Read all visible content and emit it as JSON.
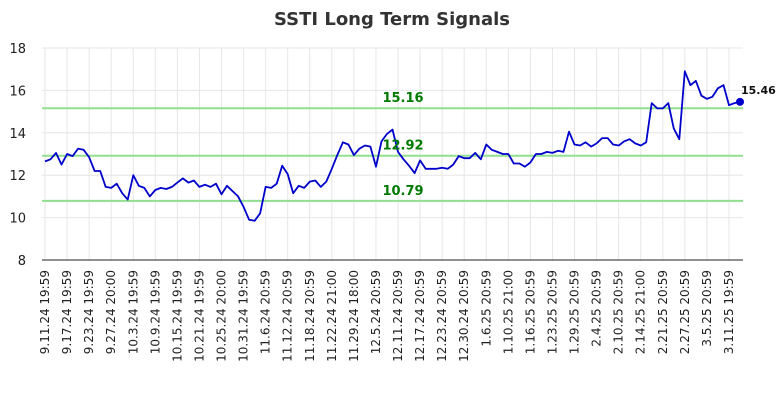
{
  "chart_data": {
    "type": "line",
    "title": "SSTI Long Term Signals",
    "ylim": [
      8,
      18
    ],
    "yticks": [
      "8",
      "10",
      "12",
      "14",
      "16",
      "18"
    ],
    "grid": true,
    "x_tick_labels": [
      "9.11.24 19:59",
      "9.17.24 19:59",
      "9.23.24 19:59",
      "9.27.24 20:00",
      "10.3.24 19:59",
      "10.9.24 19:59",
      "10.15.24 19:59",
      "10.21.24 19:59",
      "10.25.24 20:00",
      "10.31.24 19:59",
      "11.6.24 20:59",
      "11.12.24 20:59",
      "11.18.24 20:59",
      "11.22.24 21:00",
      "11.29.24 18:00",
      "12.5.24 20:59",
      "12.11.24 20:59",
      "12.17.24 20:59",
      "12.23.24 20:59",
      "12.30.24 20:59",
      "1.6.25 20:59",
      "1.10.25 21:00",
      "1.16.25 20:59",
      "1.23.25 20:59",
      "1.29.25 20:59",
      "2.4.25 20:59",
      "2.10.25 20:59",
      "2.14.25 21:00",
      "2.21.25 20:59",
      "2.27.25 20:59",
      "3.5.25 20:59",
      "3.11.25 19:59"
    ],
    "x_tick_index": [
      0,
      4,
      8,
      12,
      16,
      20,
      24,
      28,
      32,
      36,
      40,
      44,
      48,
      52,
      56,
      60,
      64,
      68,
      72,
      76,
      80,
      84,
      88,
      92,
      96,
      100,
      104,
      108,
      112,
      116,
      120,
      124
    ],
    "series": [
      {
        "color": "#0000cc",
        "values": [
          12.65,
          12.75,
          13.05,
          12.5,
          13.0,
          12.9,
          13.25,
          13.2,
          12.85,
          12.2,
          12.2,
          11.45,
          11.4,
          11.6,
          11.15,
          10.85,
          12.0,
          11.5,
          11.4,
          11.0,
          11.3,
          11.4,
          11.35,
          11.45,
          11.65,
          11.85,
          11.65,
          11.75,
          11.45,
          11.55,
          11.45,
          11.6,
          11.1,
          11.5,
          11.25,
          11.0,
          10.5,
          9.9,
          9.85,
          10.2,
          11.45,
          11.4,
          11.6,
          12.45,
          12.05,
          11.15,
          11.5,
          11.4,
          11.7,
          11.75,
          11.45,
          11.7,
          12.3,
          12.95,
          13.55,
          13.45,
          12.95,
          13.25,
          13.4,
          13.35,
          12.4,
          13.6,
          13.95,
          14.15,
          13.1,
          12.75,
          12.45,
          12.1,
          12.7,
          12.3,
          12.3,
          12.3,
          12.35,
          12.3,
          12.5,
          12.9,
          12.8,
          12.8,
          13.05,
          12.75,
          13.45,
          13.2,
          13.1,
          13.0,
          13.0,
          12.55,
          12.55,
          12.4,
          12.6,
          13.0,
          13.0,
          13.1,
          13.05,
          13.15,
          13.1,
          14.05,
          13.45,
          13.4,
          13.55,
          13.35,
          13.5,
          13.75,
          13.75,
          13.45,
          13.4,
          13.6,
          13.7,
          13.5,
          13.4,
          13.55,
          15.4,
          15.15,
          15.15,
          15.4,
          14.2,
          13.7,
          16.9,
          16.25,
          16.45,
          15.75,
          15.6,
          15.7,
          16.1,
          16.25,
          15.3,
          15.4,
          15.46
        ]
      }
    ],
    "levels": [
      {
        "value": 15.16,
        "label": "15.16",
        "color": "#90e090"
      },
      {
        "value": 12.92,
        "label": "12.92",
        "color": "#90e090"
      },
      {
        "value": 10.79,
        "label": "10.79",
        "color": "#90e090"
      }
    ],
    "level_label_color": "#007a00",
    "last_value_label": "15.46"
  }
}
